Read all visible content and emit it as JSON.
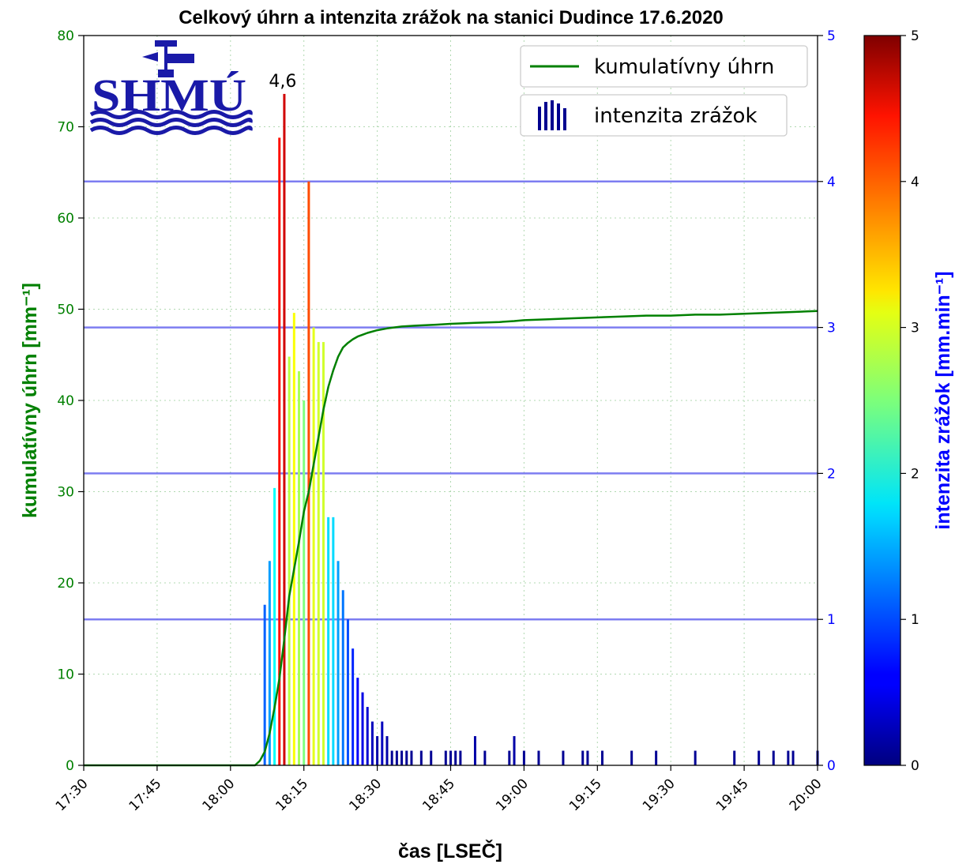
{
  "chart_data": {
    "type": "bar+line",
    "title": "Celkový úhrn a intenzita zrážok na stanici Dudince 17.6.2020",
    "xlabel": "čas [LSEČ]",
    "ylabel_left": "kumulatívny úhrn [mm⁻¹]",
    "ylabel_right": "intenzita zrážok [mm.min⁻¹]",
    "x_ticks": [
      "17:30",
      "17:45",
      "18:00",
      "18:15",
      "18:30",
      "18:45",
      "19:00",
      "19:15",
      "19:30",
      "19:45",
      "20:00"
    ],
    "xlim_minutes": [
      0,
      150
    ],
    "ylim_left": [
      0,
      80
    ],
    "ylim_right": [
      0,
      5
    ],
    "y_ticks_left": [
      "0",
      "10",
      "20",
      "30",
      "40",
      "50",
      "60",
      "70",
      "80"
    ],
    "y_ticks_right": [
      "0",
      "1",
      "2",
      "3",
      "4",
      "5"
    ],
    "colorbar_ticks": [
      "0",
      "1",
      "2",
      "3",
      "4",
      "5"
    ],
    "colormap": "jet",
    "annotation": {
      "text": "4,6",
      "x": 41,
      "y": 4.6
    },
    "legend": {
      "placement": "top-right",
      "line_label": "kumulatívny úhrn",
      "bar_label": "intenzita zrážok"
    },
    "logo_text": "SHMÚ",
    "colors": {
      "cumulative": "#008000",
      "right_axis": "#0000ff",
      "hlines": "#6666ee"
    },
    "right_hlines": [
      1,
      2,
      3,
      4
    ],
    "grid": true,
    "series": [
      {
        "name": "intenzita zrážok",
        "type": "bar",
        "x": [
          37,
          38,
          39,
          40,
          41,
          42,
          43,
          44,
          45,
          46,
          47,
          48,
          49,
          50,
          51,
          52,
          53,
          54,
          55,
          56,
          57,
          58,
          59,
          60,
          61,
          62,
          63,
          64,
          65,
          66,
          67,
          69,
          71,
          74,
          75,
          76,
          77,
          80,
          82,
          87,
          88,
          90
        ],
        "y": [
          1.1,
          1.4,
          1.9,
          4.3,
          4.6,
          2.8,
          3.1,
          2.7,
          2.5,
          4.0,
          3.0,
          2.9,
          2.9,
          1.7,
          1.7,
          1.4,
          1.2,
          1.0,
          0.8,
          0.6,
          0.5,
          0.4,
          0.3,
          0.2,
          0.3,
          0.2,
          0.1,
          0.1,
          0.1,
          0.1,
          0.1,
          0.1,
          0.1,
          0.1,
          0.1,
          0.1,
          0.1,
          0.2,
          0.1,
          0.1,
          0.2,
          0.1
        ]
      },
      {
        "name": "intenzita zrážok",
        "type": "bar",
        "x": [
          93,
          98,
          102,
          103,
          106,
          112,
          117,
          125,
          133,
          138,
          141,
          144,
          145,
          150
        ],
        "y": [
          0.1,
          0.1,
          0.1,
          0.1,
          0.1,
          0.1,
          0.1,
          0.1,
          0.1,
          0.1,
          0.1,
          0.1,
          0.1,
          0.1
        ]
      },
      {
        "name": "kumulatívny úhrn",
        "type": "line",
        "x": [
          0,
          35,
          36,
          37,
          38,
          39,
          40,
          41,
          42,
          43,
          44,
          45,
          46,
          47,
          48,
          49,
          50,
          51,
          52,
          53,
          54,
          55,
          56,
          57,
          58,
          60,
          62,
          65,
          68,
          72,
          75,
          80,
          85,
          88,
          90,
          95,
          100,
          105,
          110,
          115,
          120,
          125,
          130,
          135,
          140,
          145,
          150
        ],
        "y": [
          0,
          0,
          0.5,
          1.5,
          3.5,
          6.3,
          9.5,
          13.8,
          18.5,
          21.5,
          24.5,
          27.8,
          30.0,
          33.0,
          36.0,
          39.0,
          41.5,
          43.3,
          44.8,
          45.8,
          46.3,
          46.7,
          47.0,
          47.2,
          47.4,
          47.7,
          47.9,
          48.1,
          48.2,
          48.3,
          48.4,
          48.5,
          48.6,
          48.7,
          48.8,
          48.9,
          49.0,
          49.1,
          49.2,
          49.3,
          49.3,
          49.4,
          49.4,
          49.5,
          49.6,
          49.7,
          49.8
        ]
      }
    ]
  }
}
